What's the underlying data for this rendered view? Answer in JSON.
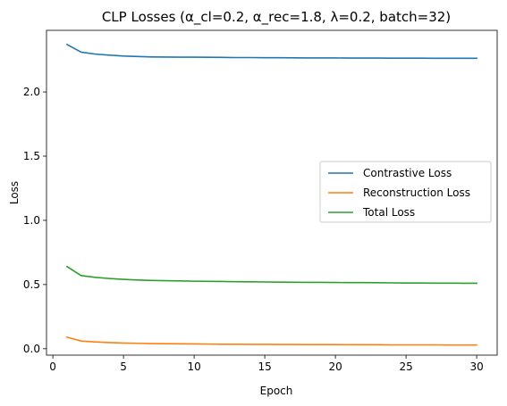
{
  "chart_data": {
    "type": "line",
    "title": "CLP Losses (α_cl=0.2, α_rec=1.8, λ=0.2, batch=32)",
    "xlabel": "Epoch",
    "ylabel": "Loss",
    "xlim": [
      -0.45,
      31.45
    ],
    "ylim": [
      -0.05,
      2.48
    ],
    "xticks": [
      0,
      5,
      10,
      15,
      20,
      25,
      30
    ],
    "xtick_labels": [
      "0",
      "5",
      "10",
      "15",
      "20",
      "25",
      "30"
    ],
    "yticks": [
      0.0,
      0.5,
      1.0,
      1.5,
      2.0
    ],
    "ytick_labels": [
      "0.0",
      "0.5",
      "1.0",
      "1.5",
      "2.0"
    ],
    "grid": false,
    "legend_position": "center-right",
    "x": [
      1,
      2,
      3,
      4,
      5,
      6,
      7,
      8,
      9,
      10,
      11,
      12,
      13,
      14,
      15,
      16,
      17,
      18,
      19,
      20,
      21,
      22,
      23,
      24,
      25,
      26,
      27,
      28,
      29,
      30
    ],
    "series": [
      {
        "name": "Contrastive Loss",
        "color": "#1f77b4",
        "values": [
          2.37,
          2.31,
          2.295,
          2.287,
          2.28,
          2.276,
          2.273,
          2.272,
          2.271,
          2.271,
          2.27,
          2.269,
          2.268,
          2.268,
          2.267,
          2.267,
          2.266,
          2.265,
          2.265,
          2.265,
          2.264,
          2.264,
          2.264,
          2.263,
          2.263,
          2.263,
          2.262,
          2.262,
          2.262,
          2.262
        ]
      },
      {
        "name": "Reconstruction Loss",
        "color": "#ff7f0e",
        "values": [
          0.09,
          0.06,
          0.053,
          0.048,
          0.044,
          0.042,
          0.04,
          0.039,
          0.038,
          0.037,
          0.036,
          0.035,
          0.035,
          0.034,
          0.034,
          0.033,
          0.033,
          0.032,
          0.032,
          0.032,
          0.031,
          0.031,
          0.031,
          0.03,
          0.03,
          0.03,
          0.03,
          0.029,
          0.029,
          0.029
        ]
      },
      {
        "name": "Total Loss",
        "color": "#2ca02c",
        "values": [
          0.64,
          0.57,
          0.556,
          0.547,
          0.54,
          0.535,
          0.532,
          0.53,
          0.528,
          0.526,
          0.525,
          0.524,
          0.522,
          0.521,
          0.52,
          0.519,
          0.518,
          0.517,
          0.517,
          0.516,
          0.515,
          0.515,
          0.514,
          0.513,
          0.512,
          0.512,
          0.511,
          0.511,
          0.51,
          0.51
        ]
      }
    ]
  }
}
